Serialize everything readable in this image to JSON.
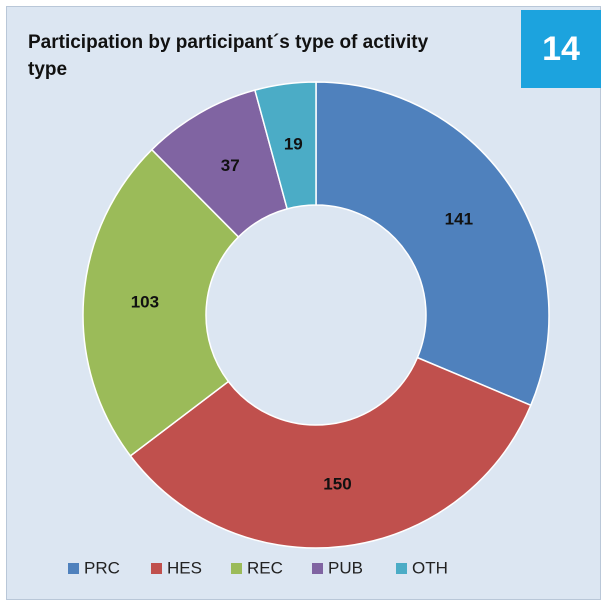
{
  "chart_data": {
    "type": "donut",
    "title": "Participation by participant´s type of activity type",
    "annotations": [
      "14"
    ],
    "categories": [
      "PRC",
      "HES",
      "REC",
      "PUB",
      "OTH"
    ],
    "values": [
      141,
      150,
      103,
      37,
      19
    ],
    "colors": [
      "#4f81bd",
      "#c0504d",
      "#9bbb59",
      "#8064a2",
      "#4bacc6"
    ],
    "legend": "bottom"
  }
}
